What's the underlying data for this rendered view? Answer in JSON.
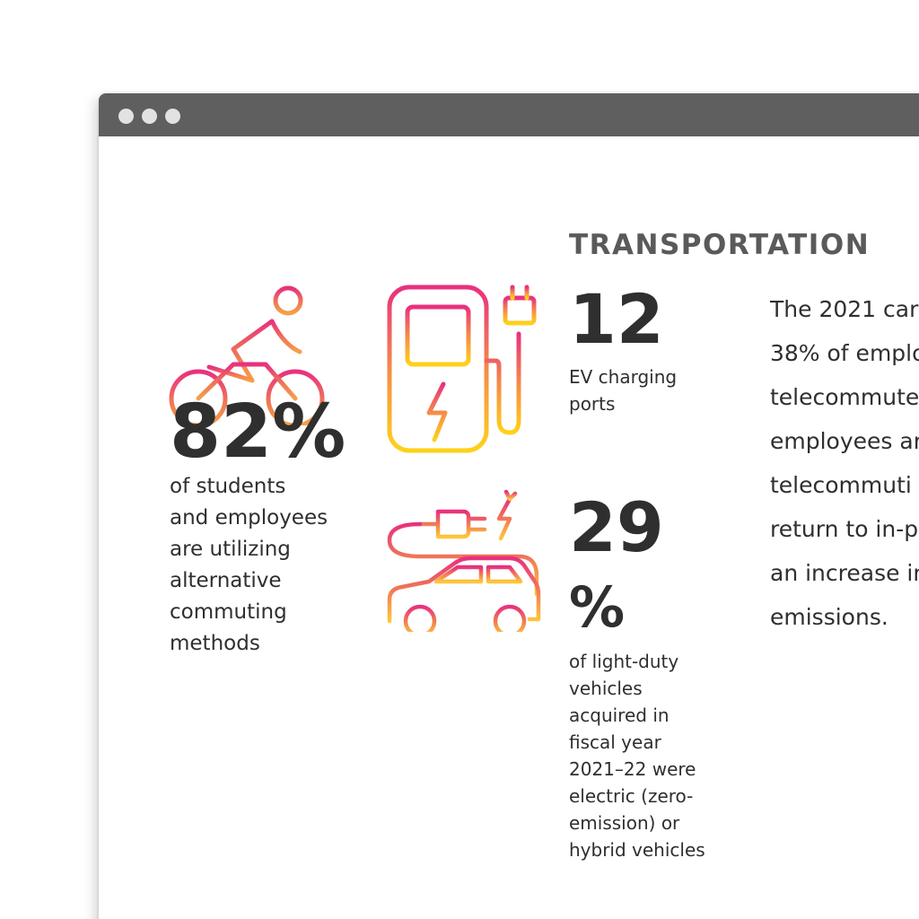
{
  "window": {
    "titlebar_color": "#5f5f5f",
    "controls": [
      "window-dot-1",
      "window-dot-2",
      "window-dot-3"
    ]
  },
  "section": {
    "title": "TRANSPORTATION"
  },
  "commute": {
    "value": "82%",
    "description": "of students\nand employees\nare utilizing\nalternative\ncommuting\nmethods",
    "icon": "bicycle-rider-icon"
  },
  "ev_ports": {
    "value": "12",
    "description": "EV charging\nports",
    "icon": "ev-charging-station-icon"
  },
  "vehicles": {
    "value": "29",
    "unit": "%",
    "description": "of light-duty\nvehicles\nacquired in\nfiscal year\n2021–22 were\nelectric (zero-\nemission) or\nhybrid vehicles",
    "icon": "electric-car-plug-icon"
  },
  "body_lines": [
    "The 2021 car",
    "38% of emplo",
    "telecommute",
    "employees ar",
    "telecommuti",
    "return to in-p",
    "an increase ir",
    "emissions."
  ],
  "colors": {
    "gradient_top": "#e8317e",
    "gradient_mid": "#f07a55",
    "gradient_bottom": "#ffd11a",
    "text": "#2f2f2f",
    "heading": "#5a5a5a"
  }
}
